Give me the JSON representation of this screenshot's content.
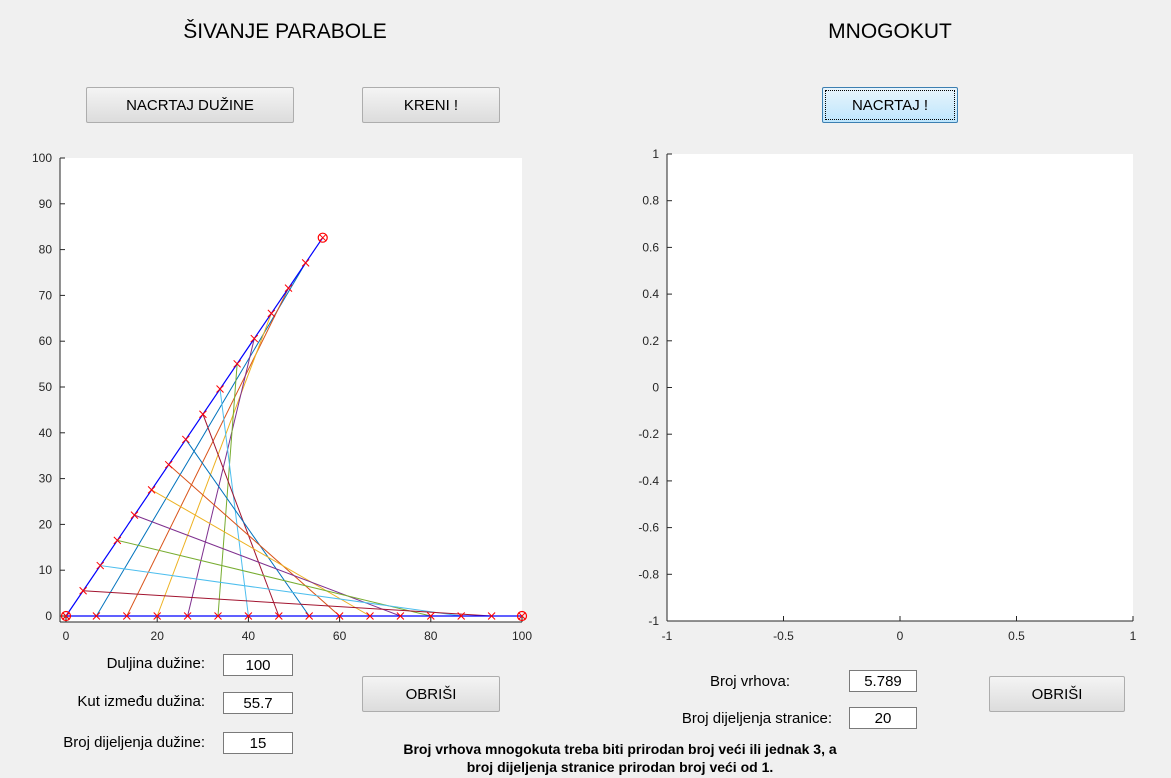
{
  "left_panel": {
    "title": "ŠIVANJE PARABOLE",
    "draw_lines_button": "NACRTAJ DUŽINE",
    "go_button": "KRENI !",
    "clear_button": "OBRIŠI",
    "fields": {
      "length_label": "Duljina dužine:",
      "length_value": "100",
      "angle_label": "Kut između dužina:",
      "angle_value": "55.7",
      "divisions_label": "Broj dijeljenja dužine:",
      "divisions_value": "15"
    }
  },
  "right_panel": {
    "title": "MNOGOKUT",
    "draw_button": "NACRTAJ !",
    "clear_button": "OBRIŠI",
    "fields": {
      "vertices_label": "Broj vrhova:",
      "vertices_value": "5.789",
      "side_divisions_label": "Broj dijeljenja stranice:",
      "side_divisions_value": "20"
    }
  },
  "footer_note": {
    "line1": "Broj vrhova mnogokuta treba biti prirodan broj veći ili jednak 3, a",
    "line2": "broj dijeljenja stranice prirodan broj veći od 1."
  },
  "chart_data": [
    {
      "type": "line",
      "title": "",
      "xlabel": "",
      "ylabel": "",
      "xlim": [
        0,
        100
      ],
      "ylim": [
        0,
        100
      ],
      "xticks": [
        "0",
        "20",
        "40",
        "60",
        "80",
        "100"
      ],
      "yticks": [
        "0",
        "10",
        "20",
        "30",
        "40",
        "50",
        "60",
        "70",
        "80",
        "90",
        "100"
      ],
      "segment_length": 100,
      "angle_deg": 55.7,
      "divisions": 15,
      "series": [
        {
          "x": [
            0,
            100
          ],
          "y": [
            0,
            0
          ]
        },
        {
          "x": [
            0,
            56.3
          ],
          "y": [
            0,
            82.6
          ]
        }
      ],
      "endpoints": [
        {
          "x": 0,
          "y": 0
        },
        {
          "x": 100,
          "y": 0
        },
        {
          "x": 56.3,
          "y": 82.6
        }
      ],
      "colors": [
        "#0072bd",
        "#d95319",
        "#edb120",
        "#7e2f8e",
        "#77ac30",
        "#4dbeee",
        "#a2142f"
      ]
    },
    {
      "type": "line",
      "title": "",
      "xlabel": "",
      "ylabel": "",
      "xlim": [
        -1,
        1
      ],
      "ylim": [
        -1,
        1
      ],
      "xticks": [
        "-1",
        "-0.5",
        "0",
        "0.5",
        "1"
      ],
      "yticks": [
        "-1",
        "-0.8",
        "-0.6",
        "-0.4",
        "-0.2",
        "0",
        "0.2",
        "0.4",
        "0.6",
        "0.8",
        "1"
      ],
      "series": []
    }
  ]
}
